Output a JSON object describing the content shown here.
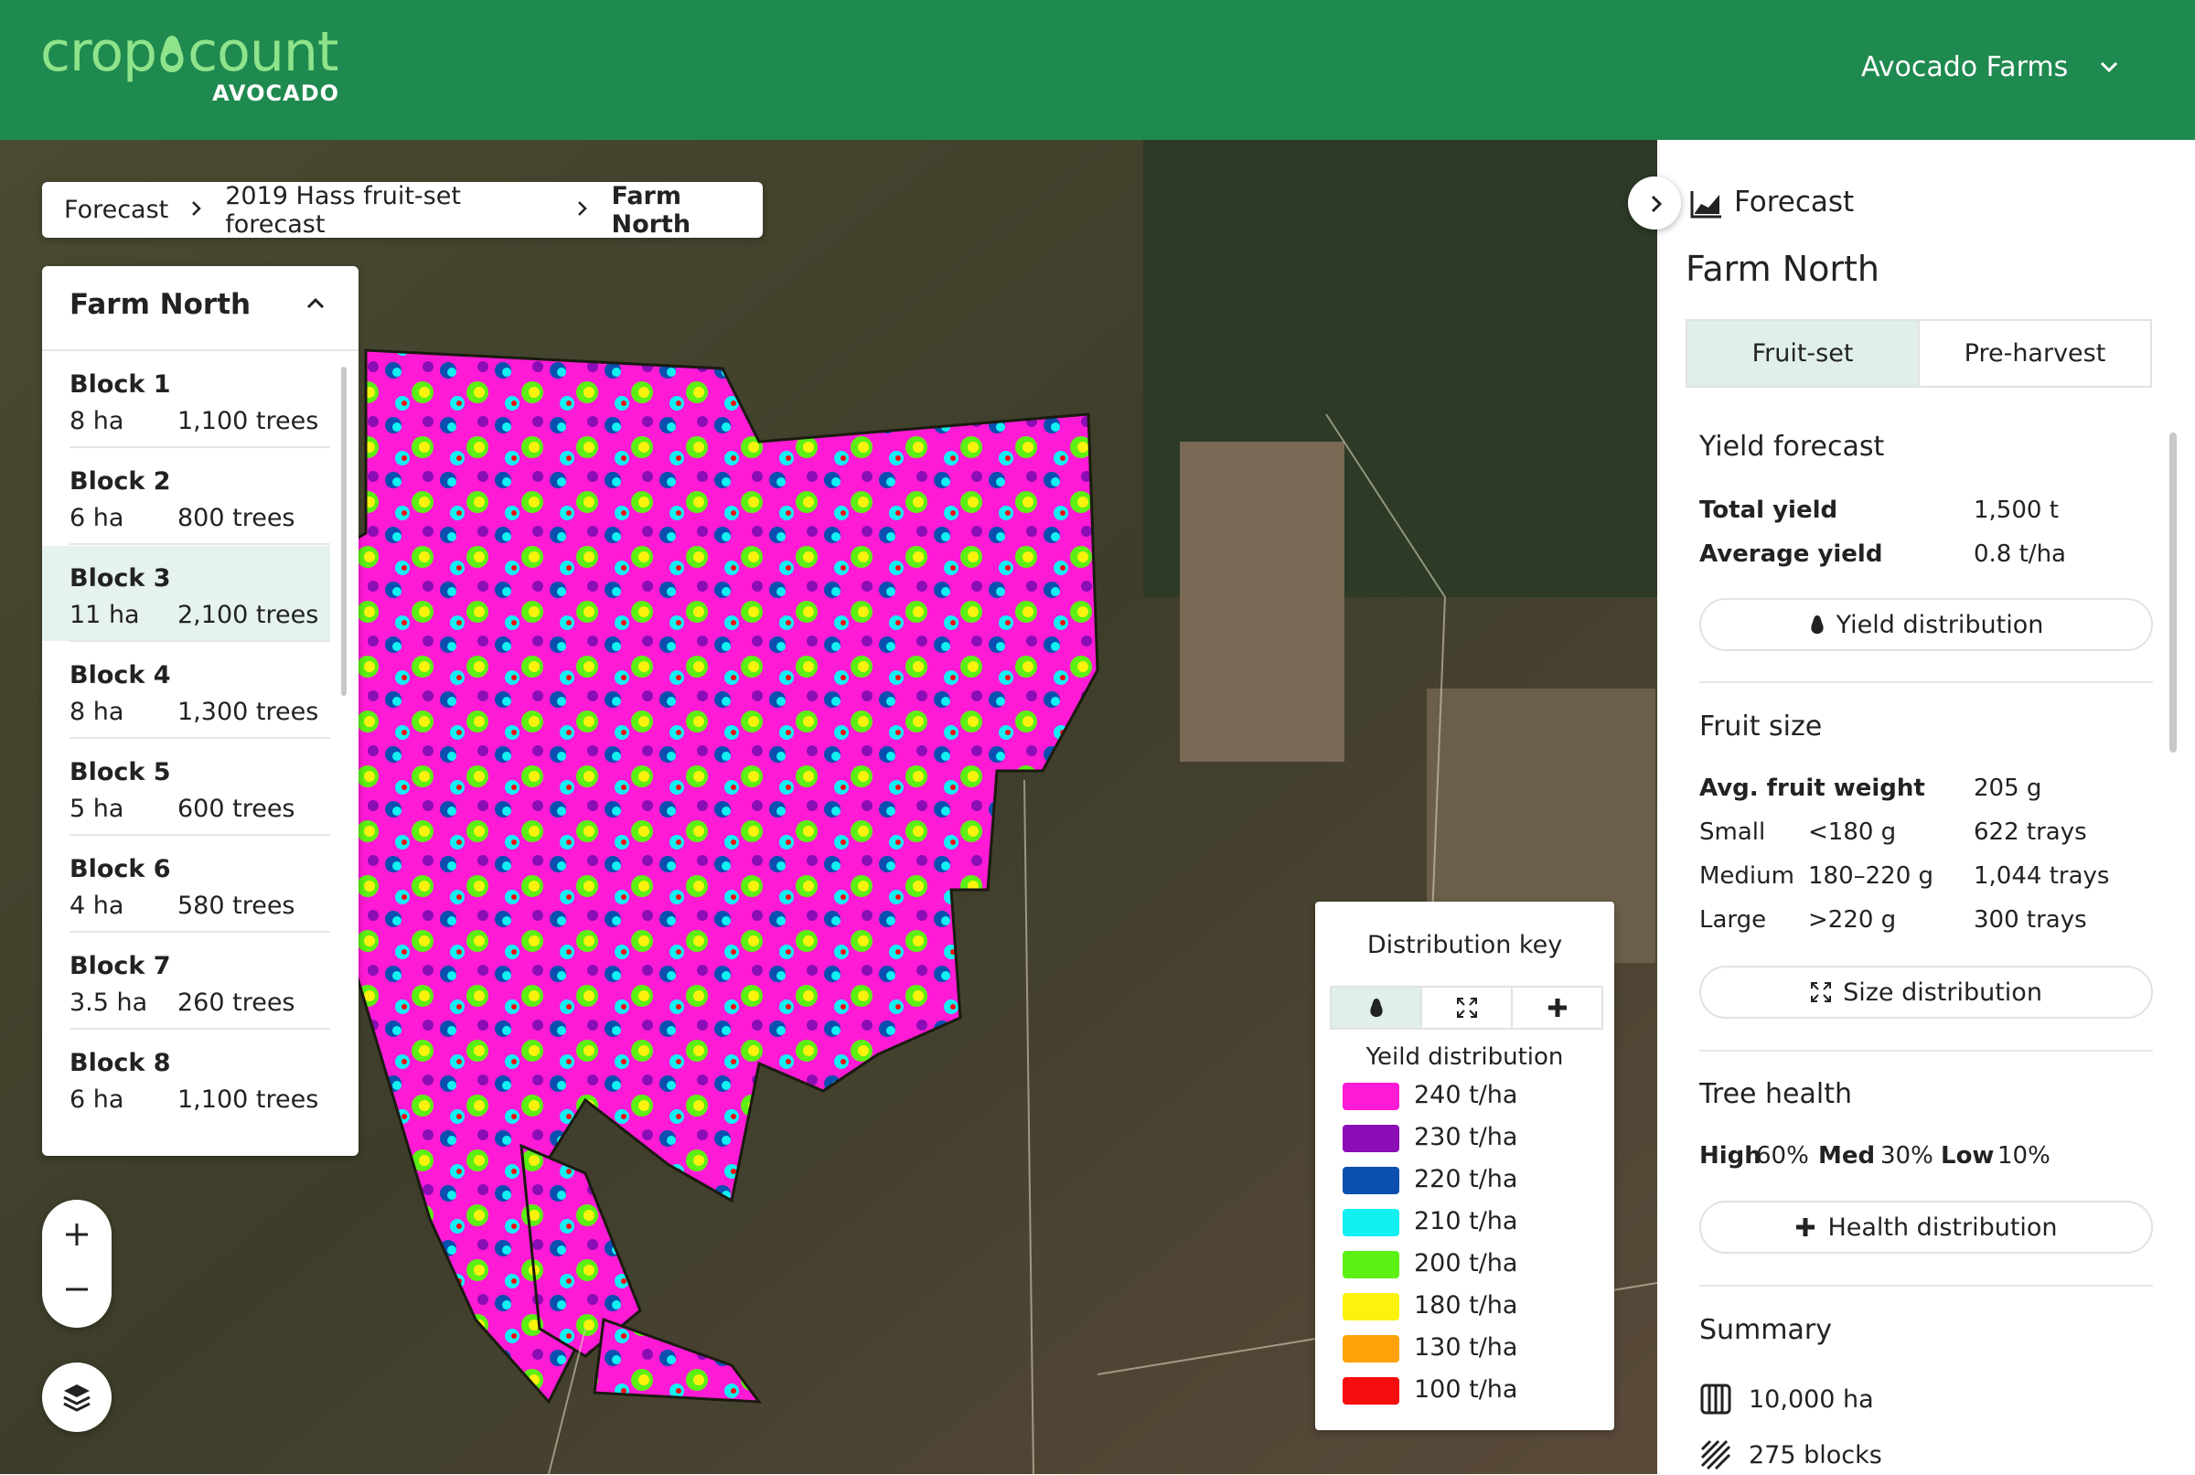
{
  "header": {
    "logo": [
      "crop",
      "count"
    ],
    "logo_sub": "AVOCADO",
    "account": "Avocado Farms"
  },
  "breadcrumb": [
    "Forecast",
    "2019 Hass fruit-set forecast",
    "Farm North"
  ],
  "block_list": {
    "title": "Farm North",
    "blocks": [
      {
        "name": "Block 1",
        "area": "8 ha",
        "trees": "1,100 trees"
      },
      {
        "name": "Block 2",
        "area": "6 ha",
        "trees": "800 trees"
      },
      {
        "name": "Block 3",
        "area": "11 ha",
        "trees": "2,100 trees"
      },
      {
        "name": "Block 4",
        "area": "8 ha",
        "trees": "1,300 trees"
      },
      {
        "name": "Block 5",
        "area": "5 ha",
        "trees": "600 trees"
      },
      {
        "name": "Block 6",
        "area": "4 ha",
        "trees": "580 trees"
      },
      {
        "name": "Block 7",
        "area": "3.5 ha",
        "trees": "260 trees"
      },
      {
        "name": "Block 8",
        "area": "6 ha",
        "trees": "1,100 trees"
      }
    ]
  },
  "legend": {
    "title": "Distribution key",
    "subtitle": "Yeild distribution",
    "items": [
      {
        "label": "240 t/ha",
        "color": "#ff1ad6"
      },
      {
        "label": "230 t/ha",
        "color": "#8a0db5"
      },
      {
        "label": "220 t/ha",
        "color": "#0a4fb0"
      },
      {
        "label": "210 t/ha",
        "color": "#12f0f2"
      },
      {
        "label": "200 t/ha",
        "color": "#5cf014"
      },
      {
        "label": "180 t/ha",
        "color": "#fbf20e"
      },
      {
        "label": "130 t/ha",
        "color": "#ffa20a"
      },
      {
        "label": "100 t/ha",
        "color": "#f50d0d"
      }
    ]
  },
  "panel": {
    "section": "Forecast",
    "title": "Farm North",
    "tabs": [
      "Fruit-set",
      "Pre-harvest"
    ],
    "yield": {
      "heading": "Yield forecast",
      "rows": [
        [
          "Total yield",
          "1,500 t"
        ],
        [
          "Average yield",
          "0.8 t/ha"
        ]
      ],
      "button": "Yield distribution"
    },
    "fruit_size": {
      "heading": "Fruit size",
      "avg": [
        "Avg. fruit weight",
        "205 g"
      ],
      "rows": [
        [
          "Small",
          "<180 g",
          "622 trays"
        ],
        [
          "Medium",
          "180–220 g",
          "1,044 trays"
        ],
        [
          "Large",
          ">220 g",
          "300 trays"
        ]
      ],
      "button": "Size distribution"
    },
    "tree_health": {
      "heading": "Tree health",
      "items": [
        [
          "High",
          "60%"
        ],
        [
          "Med",
          "30%"
        ],
        [
          "Low",
          "10%"
        ]
      ],
      "button": "Health distribution"
    },
    "summary": {
      "heading": "Summary",
      "items": [
        "10,000 ha",
        "275 blocks"
      ]
    }
  }
}
